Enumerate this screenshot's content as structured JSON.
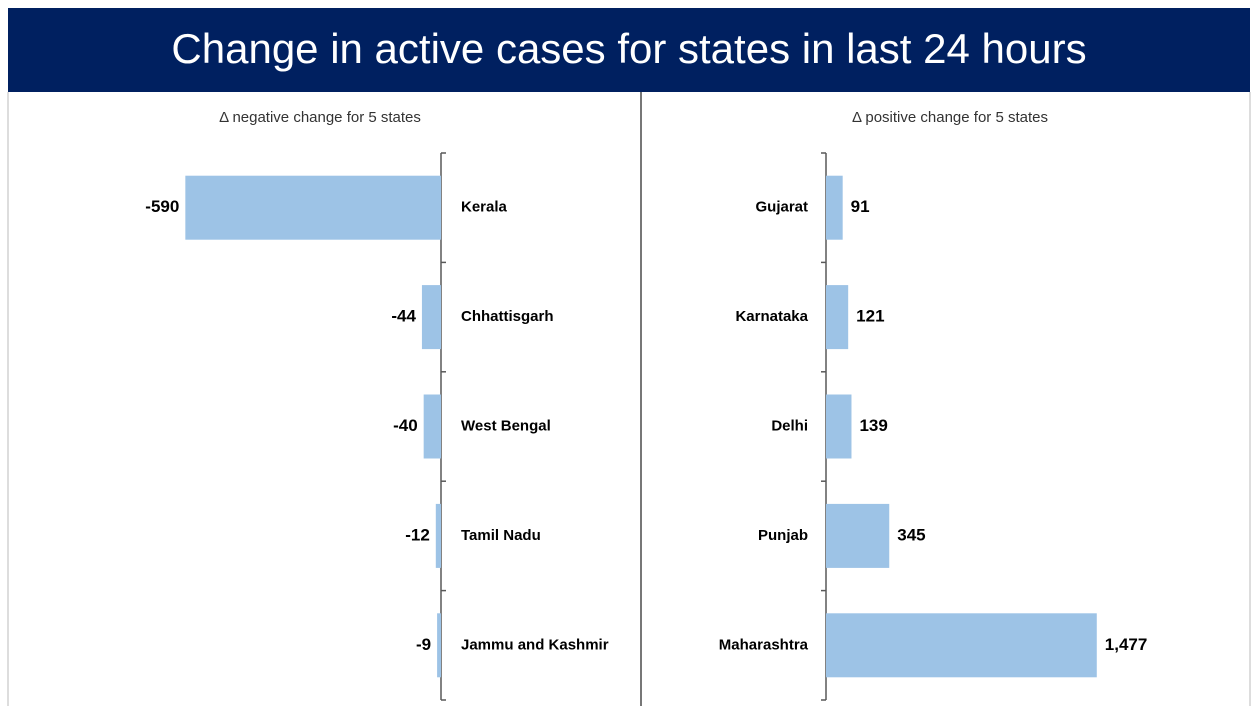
{
  "title": "Change in active cases for states in last 24 hours",
  "chart_data": [
    {
      "type": "bar",
      "orientation": "horizontal",
      "title": "Δ negative change for 5 states",
      "categories": [
        "Kerala",
        "Chhattisgarh",
        "West Bengal",
        "Tamil Nadu",
        "Jammu and Kashmir"
      ],
      "values": [
        -590,
        -44,
        -40,
        -12,
        -9
      ],
      "color": "#9dc3e6",
      "xlim": [
        -600,
        0
      ]
    },
    {
      "type": "bar",
      "orientation": "horizontal",
      "title": "Δ positive change for 5 states",
      "categories": [
        "Gujarat",
        "Karnataka",
        "Delhi",
        "Punjab",
        "Maharashtra"
      ],
      "values": [
        91,
        121,
        139,
        345,
        1477
      ],
      "value_labels": [
        "91",
        "121",
        "139",
        "345",
        "1,477"
      ],
      "color": "#9dc3e6",
      "xlim": [
        0,
        1500
      ]
    }
  ]
}
